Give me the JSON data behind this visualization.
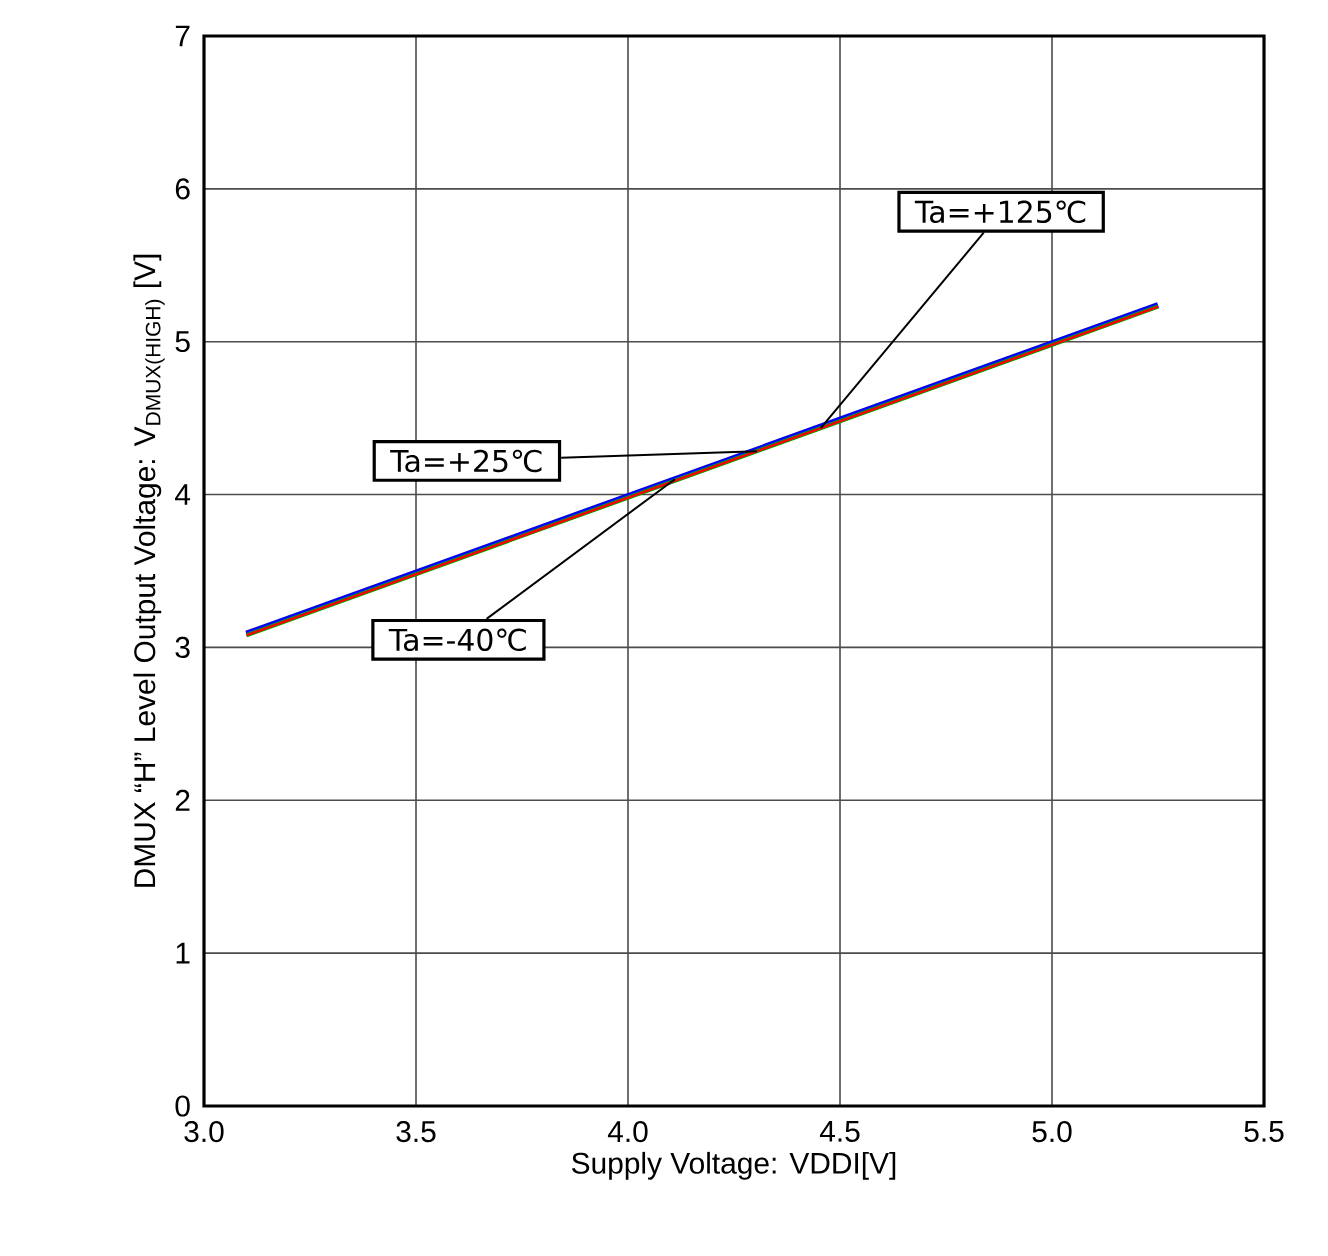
{
  "chart_data": {
    "type": "line",
    "xlabel": "Supply Voltage: VDDI[V]",
    "ylabel": "DMUX “H” Level Output Voltage: V$_{DMUX(HIGH)}$ [V]",
    "x": [
      3.1,
      5.25
    ],
    "series": [
      {
        "name": "Ta=-40℃",
        "color": "#0000ff",
        "values": [
          3.09,
          5.24
        ]
      },
      {
        "name": "Ta=+25℃",
        "color": "#00a000",
        "values": [
          3.08,
          5.23
        ]
      },
      {
        "name": "Ta=+125℃",
        "color": "#ff0000",
        "values": [
          3.08,
          5.23
        ]
      }
    ],
    "xlim": [
      3.0,
      5.5
    ],
    "ylim": [
      0,
      7
    ],
    "xticks": [
      {
        "value": 3.0,
        "label": "3.0"
      },
      {
        "value": 3.5,
        "label": "3.5"
      },
      {
        "value": 4.0,
        "label": "4.0"
      },
      {
        "value": 4.5,
        "label": "4.5"
      },
      {
        "value": 5.0,
        "label": "5.0"
      },
      {
        "value": 5.5,
        "label": "5.5"
      }
    ],
    "yticks": [
      0,
      1,
      2,
      3,
      4,
      5,
      6,
      7
    ],
    "grid": true,
    "legend": false,
    "marker": "none",
    "line_style": "solid"
  }
}
